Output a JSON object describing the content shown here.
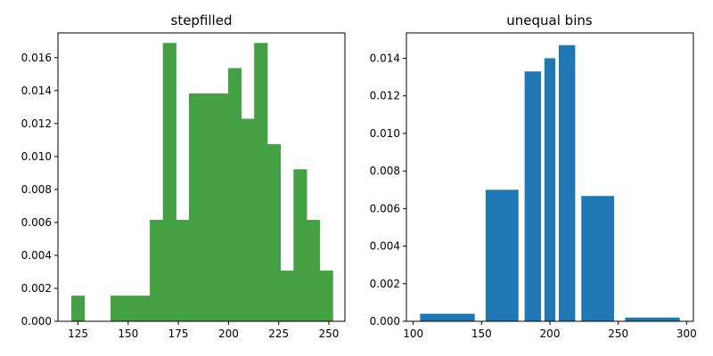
{
  "chart_data": [
    {
      "type": "bar",
      "title": "stepfilled",
      "xlabel": "",
      "ylabel": "",
      "grid": false,
      "color": "#43a143",
      "xlim": [
        115,
        258
      ],
      "ylim": [
        0,
        0.0175
      ],
      "xticks": [
        125,
        150,
        175,
        200,
        225,
        250
      ],
      "yticks": [
        "0.000",
        "0.002",
        "0.004",
        "0.006",
        "0.008",
        "0.010",
        "0.012",
        "0.014",
        "0.016"
      ],
      "bin_edges": [
        121.8,
        128.3,
        134.8,
        141.3,
        147.8,
        154.3,
        160.9,
        167.4,
        173.9,
        180.4,
        186.9,
        193.4,
        199.9,
        206.4,
        212.9,
        219.4,
        225.9,
        232.5,
        239.0,
        245.5,
        252.0
      ],
      "values": [
        0.00154,
        0.0,
        0.0,
        0.00154,
        0.00154,
        0.00154,
        0.00614,
        0.01688,
        0.00614,
        0.01381,
        0.01381,
        0.01381,
        0.01535,
        0.01228,
        0.01688,
        0.01074,
        0.00307,
        0.00921,
        0.00614,
        0.00307
      ]
    },
    {
      "type": "bar",
      "title": "unequal bins",
      "xlabel": "",
      "ylabel": "",
      "grid": false,
      "color": "#1f77b4",
      "xlim": [
        95,
        305
      ],
      "ylim": [
        0,
        0.01535
      ],
      "xticks": [
        100,
        150,
        200,
        250,
        300
      ],
      "yticks": [
        "0.000",
        "0.002",
        "0.004",
        "0.006",
        "0.008",
        "0.010",
        "0.012",
        "0.014"
      ],
      "bin_edges": [
        100,
        150,
        180,
        195,
        205,
        220,
        250,
        300
      ],
      "values": [
        0.0004,
        0.007,
        0.0133,
        0.014,
        0.0147,
        0.00667,
        0.0002
      ]
    }
  ]
}
